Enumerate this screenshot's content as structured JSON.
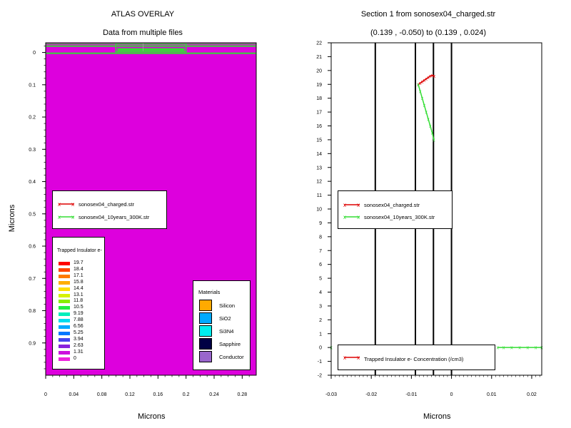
{
  "left": {
    "title": "ATLAS OVERLAY",
    "subtitle": "Data from multiple files",
    "xlabel": "Microns",
    "ylabel": "Microns",
    "legend": {
      "entries": [
        {
          "label": "sonosex04_charged.str",
          "color": "#dd0000"
        },
        {
          "label": "sonosex04_10years_300K.str",
          "color": "#33dd33"
        }
      ]
    },
    "colorbar": {
      "title": "Trapped Insulator e-",
      "entries": [
        {
          "value": "19.7",
          "color": "#ff0000"
        },
        {
          "value": "18.4",
          "color": "#ff4400"
        },
        {
          "value": "17.1",
          "color": "#ff7a00"
        },
        {
          "value": "15.8",
          "color": "#ffae00"
        },
        {
          "value": "14.4",
          "color": "#ffdd00"
        },
        {
          "value": "13.1",
          "color": "#d6f200"
        },
        {
          "value": "11.8",
          "color": "#88ee00"
        },
        {
          "value": "10.5",
          "color": "#22ee44"
        },
        {
          "value": "9.19",
          "color": "#00eebb"
        },
        {
          "value": "7.88",
          "color": "#00ddee"
        },
        {
          "value": "6.56",
          "color": "#00aaff"
        },
        {
          "value": "5.25",
          "color": "#0077ff"
        },
        {
          "value": "3.94",
          "color": "#4444ee"
        },
        {
          "value": "2.63",
          "color": "#8822dd"
        },
        {
          "value": "1.31",
          "color": "#cc11dd"
        },
        {
          "value": "0",
          "color": "#ee22dd"
        }
      ]
    },
    "materials": {
      "title": "Materials",
      "entries": [
        {
          "label": "Silicon",
          "color": "#ffaa00"
        },
        {
          "label": "SiO2",
          "color": "#00aaff"
        },
        {
          "label": "Si3N4",
          "color": "#00eeee"
        },
        {
          "label": "Sapphire",
          "color": "#000044"
        },
        {
          "label": "Conductor",
          "color": "#9966cc"
        }
      ]
    }
  },
  "right": {
    "title": "Section 1 from sonosex04_charged.str",
    "subtitle": "(0.139 , -0.050) to (0.139 , 0.024)",
    "xlabel": "Microns",
    "legend": {
      "entries": [
        {
          "label": "sonosex04_charged.str",
          "color": "#dd0000"
        },
        {
          "label": "sonosex04_10years_300K.str",
          "color": "#33dd33"
        }
      ]
    },
    "bottom_legend": {
      "label": "Trapped Insulator e- Concentration (/cm3)",
      "color": "#dd0000"
    }
  },
  "chart_data": [
    {
      "type": "heatmap",
      "title": "ATLAS OVERLAY",
      "subtitle": "Data from multiple files",
      "xlabel": "Microns",
      "ylabel": "Microns",
      "xlim": [
        0,
        0.3
      ],
      "ylim": [
        1.0,
        -0.03
      ],
      "x_ticks": [
        "0",
        "0.04",
        "0.08",
        "0.12",
        "0.16",
        "0.2",
        "0.24",
        "0.28"
      ],
      "y_ticks": [
        "0",
        "0.1",
        "0.2",
        "0.3",
        "0.4",
        "0.5",
        "0.6",
        "0.7",
        "0.8",
        "0.9"
      ],
      "fill_color": "#dd00dd",
      "structure_outline_color": "#33dd33",
      "cutline_x": 0.139,
      "colorbar_range": [
        0,
        19.7
      ]
    },
    {
      "type": "line",
      "title": "Section 1 from sonosex04_charged.str",
      "subtitle": "(0.139 , -0.050) to (0.139 , 0.024)",
      "xlabel": "Microns",
      "xlim": [
        -0.03,
        0.0225
      ],
      "ylim": [
        -2,
        22
      ],
      "x_ticks": [
        "-0.03",
        "-0.02",
        "-0.01",
        "0",
        "0.01",
        "0.02"
      ],
      "y_ticks": [
        "-2",
        "-1",
        "0",
        "1",
        "2",
        "3",
        "4",
        "5",
        "6",
        "7",
        "8",
        "9",
        "10",
        "11",
        "12",
        "13",
        "14",
        "15",
        "16",
        "17",
        "18",
        "19",
        "20",
        "21",
        "22"
      ],
      "interfaces_x": [
        -0.019,
        -0.009,
        -0.0045,
        0.0
      ],
      "series": [
        {
          "name": "sonosex04_charged.str",
          "color": "#dd0000",
          "x": [
            -0.0083,
            -0.0078,
            -0.0073,
            -0.0068,
            -0.0063,
            -0.0058,
            -0.0053,
            -0.0048,
            -0.0043
          ],
          "y": [
            19.0,
            19.1,
            19.2,
            19.3,
            19.4,
            19.5,
            19.6,
            19.65,
            19.6
          ]
        },
        {
          "name": "sonosex04_10years_300K.str",
          "color": "#33dd33",
          "x": [
            -0.03,
            -0.022,
            -0.0083,
            -0.0078,
            -0.0073,
            -0.0068,
            -0.0063,
            -0.0058,
            -0.0053,
            -0.0048,
            -0.0044,
            -0.0043,
            0.0115,
            0.013,
            0.015,
            0.017,
            0.019,
            0.021,
            0.0225
          ],
          "y": [
            0,
            0,
            19.0,
            18.5,
            18.0,
            17.5,
            17.0,
            16.5,
            16.0,
            15.5,
            15.0,
            0,
            0,
            0,
            0,
            0,
            0,
            0,
            0
          ]
        }
      ]
    }
  ]
}
